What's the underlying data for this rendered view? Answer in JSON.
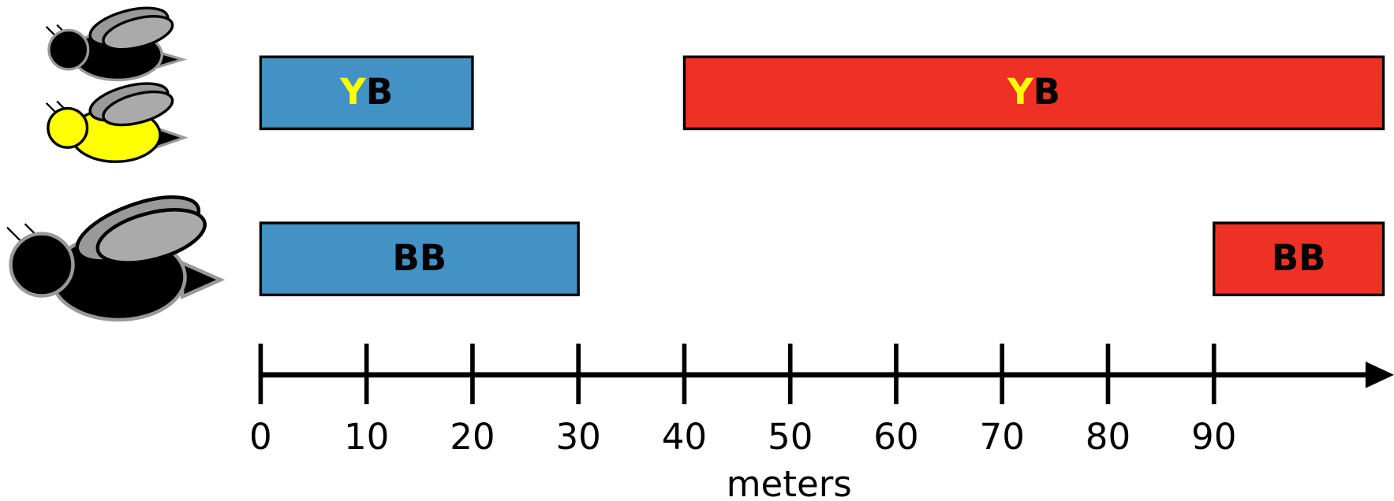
{
  "chart_data": {
    "type": "range",
    "xlabel": "meters",
    "xlim": [
      0,
      107
    ],
    "xticks": [
      0,
      10,
      20,
      30,
      40,
      50,
      60,
      70,
      80,
      90
    ],
    "rows": [
      {
        "bars": [
          {
            "start": 0,
            "end": 20,
            "color": "#4292c6",
            "label": [
              {
                "text": "Y",
                "color": "#ffff00"
              },
              {
                "text": "B",
                "color": "#000000"
              }
            ]
          },
          {
            "start": 40,
            "end": 106,
            "color": "#ee3124",
            "label": [
              {
                "text": "Y",
                "color": "#ffff00"
              },
              {
                "text": "B",
                "color": "#000000"
              }
            ]
          }
        ]
      },
      {
        "bars": [
          {
            "start": 0,
            "end": 30,
            "color": "#4292c6",
            "label": [
              {
                "text": "BB",
                "color": "#000000"
              }
            ]
          },
          {
            "start": 90,
            "end": 106,
            "color": "#ee3124",
            "label": [
              {
                "text": "BB",
                "color": "#000000"
              }
            ]
          }
        ]
      }
    ]
  }
}
